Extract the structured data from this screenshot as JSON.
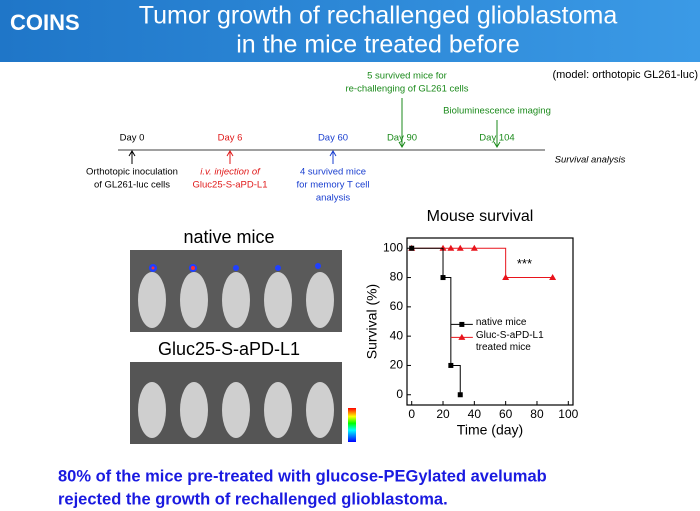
{
  "header": {
    "logo": "COINS",
    "title": [
      "Tumor growth of rechallenged glioblastoma",
      "in the mice treated before"
    ]
  },
  "model_note": "(model:  orthotopic GL261-luc)",
  "timeline": {
    "days": [
      "Day 0",
      "Day 6",
      "Day 60",
      "Day 90",
      "Day 104"
    ],
    "end_label": "Survival analysis",
    "below": [
      [
        "Orthotopic inoculation",
        "of GL261-luc cells"
      ],
      [
        "i.v. injection of",
        "Gluc25-S-aPD-L1"
      ],
      [
        "4 survived mice",
        "for memory T cell",
        "analysis"
      ]
    ],
    "above": [
      [
        "5 survived mice for",
        "re-challenging of GL261 cells"
      ],
      [
        "Bioluminescence imaging"
      ]
    ]
  },
  "images": {
    "top_label": "native mice",
    "bottom_label": "Gluc25-S-aPD-L1"
  },
  "chart_data": {
    "type": "step",
    "title": "Mouse survival",
    "x_label": "Time (day)",
    "y_label": "Survival (%)",
    "xlim": [
      -3,
      103
    ],
    "ylim": [
      -7,
      107
    ],
    "xticks": [
      0,
      20,
      40,
      60,
      80,
      100
    ],
    "yticks": [
      0,
      20,
      40,
      60,
      80,
      100
    ],
    "legend": "upper-right",
    "series": [
      {
        "name": "native mice",
        "color": "#000000",
        "marker": "square",
        "x": [
          0,
          20,
          25,
          31
        ],
        "values": [
          100,
          80,
          20,
          0
        ]
      },
      {
        "name": "Gluc-S-aPD-L1 treated mice",
        "color": "#e8141c",
        "marker": "triangle",
        "x": [
          0,
          20,
          25,
          31,
          40,
          60,
          90
        ],
        "values": [
          100,
          100,
          100,
          100,
          100,
          80,
          80
        ]
      }
    ],
    "annotation": "***"
  },
  "conclusion": [
    "80% of the mice pre-treated with glucose-PEGylated avelumab",
    "rejected the growth of rechallenged glioblastoma."
  ]
}
